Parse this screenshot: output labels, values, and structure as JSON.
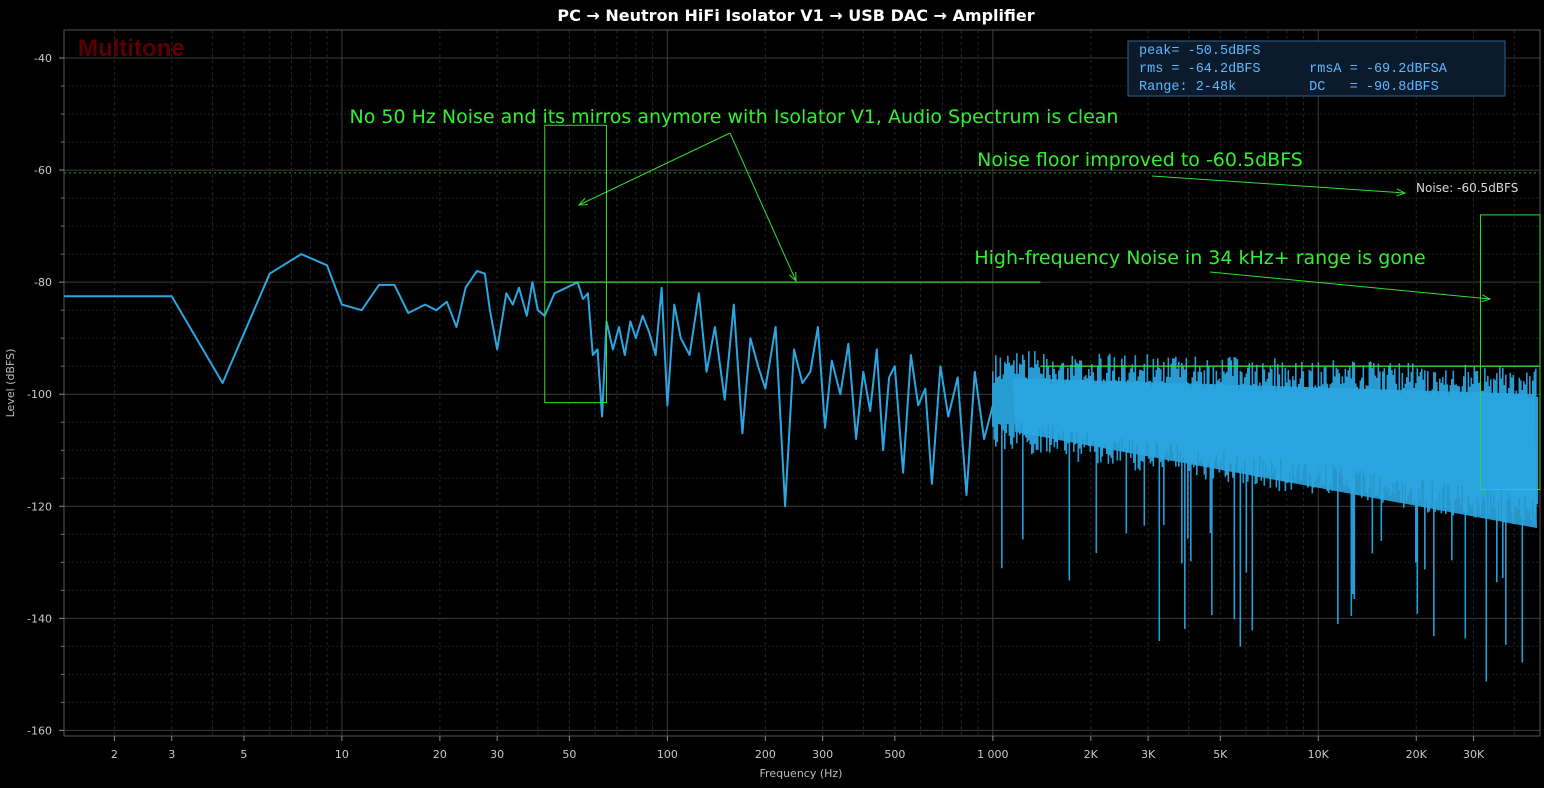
{
  "chart_data": {
    "type": "line",
    "title": "PC → Neutron HiFi Isolator V1 → USB DAC → Amplifier",
    "watermark": "Multitone",
    "xlabel": "Frequency (Hz)",
    "ylabel": "Level (dBFS)",
    "xscale": "log",
    "xlim": [
      1.4,
      48000
    ],
    "ylim": [
      -161,
      -35
    ],
    "grid": true,
    "x_ticks": [
      {
        "v": 2,
        "label": "2"
      },
      {
        "v": 3,
        "label": "3"
      },
      {
        "v": 5,
        "label": "5"
      },
      {
        "v": 10,
        "label": "10"
      },
      {
        "v": 20,
        "label": "20"
      },
      {
        "v": 30,
        "label": "30"
      },
      {
        "v": 50,
        "label": "50"
      },
      {
        "v": 100,
        "label": "100"
      },
      {
        "v": 200,
        "label": "200"
      },
      {
        "v": 300,
        "label": "300"
      },
      {
        "v": 500,
        "label": "500"
      },
      {
        "v": 1000,
        "label": "1 000"
      },
      {
        "v": 2000,
        "label": "2K"
      },
      {
        "v": 3000,
        "label": "3K"
      },
      {
        "v": 5000,
        "label": "5K"
      },
      {
        "v": 10000,
        "label": "10K"
      },
      {
        "v": 20000,
        "label": "20K"
      },
      {
        "v": 30000,
        "label": "30K"
      }
    ],
    "y_ticks": [
      {
        "v": -40,
        "label": "-40"
      },
      {
        "v": -60,
        "label": "-60"
      },
      {
        "v": -80,
        "label": "-80"
      },
      {
        "v": -100,
        "label": "-100"
      },
      {
        "v": -120,
        "label": "-120"
      },
      {
        "v": -140,
        "label": "-140"
      },
      {
        "v": -160,
        "label": "-160"
      }
    ],
    "stats": [
      "peak= -50.5dBFS",
      "rms = -64.2dBFS      rmsA = -69.2dBFSA",
      "Range: 2-48k         DC   = -90.8dBFS"
    ],
    "noise_floor": {
      "level": -60.5,
      "label": "Noise: -60.5dBFS"
    },
    "annotations": [
      "No 50 Hz Noise and its mirros anymore with Isolator V1, Audio Spectrum is clean",
      "Noise floor improved to -60.5dBFS",
      "High-frequency Noise in 34 kHz+ range is gone"
    ],
    "highlight_boxes": [
      {
        "x": [
          42,
          65
        ],
        "y": [
          -52,
          -101.5
        ]
      },
      {
        "x": [
          31500,
          48000
        ],
        "y": [
          -68,
          -117
        ]
      }
    ],
    "reference_lines": [
      {
        "x": [
          42,
          1400
        ],
        "y": -80
      },
      {
        "x": [
          1400,
          48000
        ],
        "y": -95
      }
    ],
    "series": [
      {
        "color": "#2ba6e0",
        "x": [
          1.4,
          3,
          4.3,
          6,
          7.5,
          9,
          10,
          11.5,
          13,
          14.5,
          16,
          18,
          19.5,
          21,
          22.5,
          24,
          26,
          27.5,
          28.5,
          30,
          31,
          32,
          33.5,
          35,
          37,
          38.5,
          40,
          42,
          45,
          49,
          51,
          53,
          55,
          57,
          59,
          61,
          63,
          65,
          68,
          71,
          74,
          77,
          80,
          84,
          88,
          92,
          96,
          100,
          105,
          110,
          117,
          125,
          132,
          140,
          150,
          160,
          170,
          180,
          190,
          200,
          215,
          230,
          245,
          260,
          275,
          290,
          305,
          320,
          340,
          360,
          380,
          400,
          420,
          440,
          460,
          480,
          500,
          530,
          560,
          590,
          620,
          650,
          690,
          730,
          780,
          830,
          880,
          940,
          1000
        ],
        "y": [
          -82.5,
          -82.5,
          -98,
          -78.5,
          -75,
          -77,
          -84,
          -85,
          -80.5,
          -80.5,
          -85.5,
          -84,
          -85,
          -83.5,
          -88,
          -81,
          -78,
          -78.5,
          -85,
          -92,
          -87,
          -82,
          -84,
          -81,
          -86,
          -80,
          -85,
          -86,
          -82,
          -81,
          -80.5,
          -80,
          -83,
          -82,
          -93,
          -92,
          -104,
          -87,
          -92,
          -88,
          -93,
          -87,
          -90,
          -86,
          -89,
          -93,
          -81,
          -102,
          -84,
          -90,
          -93,
          -82,
          -96,
          -88,
          -101,
          -84,
          -107,
          -90,
          -95,
          -99,
          -88,
          -120,
          -92,
          -98,
          -96,
          -88,
          -106,
          -94,
          -100,
          -91,
          -108,
          -96,
          -103,
          -92,
          -110,
          -97,
          -95,
          -114,
          -93,
          -102,
          -99,
          -116,
          -95,
          -104,
          -97,
          -118,
          -96,
          -108,
          -102
        ]
      }
    ]
  }
}
